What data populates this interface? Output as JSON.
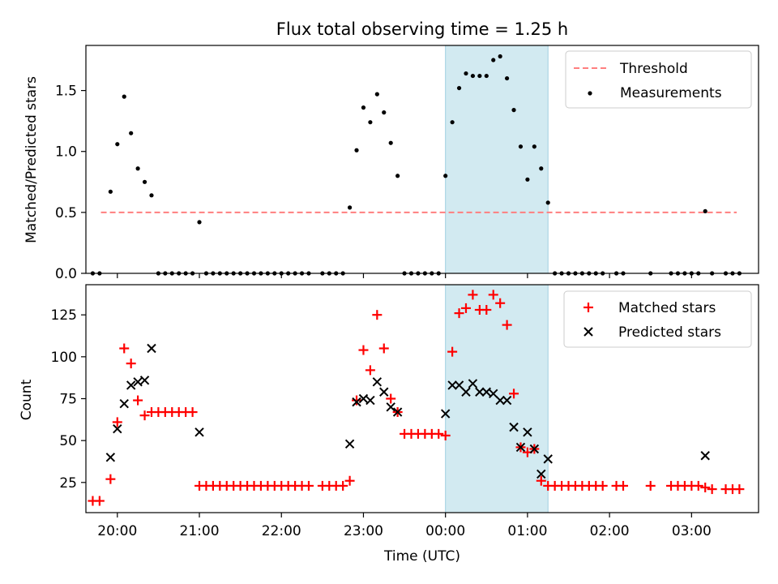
{
  "title": "Flux total observing time = 1.25 h",
  "colors": {
    "threshold": "#ff7f7f",
    "measurement": "#000000",
    "matched": "#ff0000",
    "predicted": "#000000",
    "highlight": "#add8e6"
  },
  "chart_data": [
    {
      "type": "scatter",
      "ylabel": "Matched/Predicted stars",
      "xlim": [
        "19:37",
        "03:49"
      ],
      "ylim": [
        0,
        1.87
      ],
      "yticks": [
        0.0,
        0.5,
        1.0,
        1.5
      ],
      "ytick_labels": [
        "0.0",
        "0.5",
        "1.0",
        "1.5"
      ],
      "highlight_span": [
        "00:00",
        "01:15"
      ],
      "legend_position": "upper right",
      "threshold": {
        "name": "Threshold",
        "value": 0.5,
        "x_range": [
          "19:48",
          "03:33"
        ]
      },
      "series": [
        {
          "name": "Measurements",
          "points": [
            [
              "19:42",
              0
            ],
            [
              "19:47",
              0
            ],
            [
              "19:55",
              0.67
            ],
            [
              "20:00",
              1.06
            ],
            [
              "20:05",
              1.45
            ],
            [
              "20:10",
              1.15
            ],
            [
              "20:15",
              0.86
            ],
            [
              "20:20",
              0.75
            ],
            [
              "20:25",
              0.64
            ],
            [
              "20:30",
              0
            ],
            [
              "20:35",
              0
            ],
            [
              "20:40",
              0
            ],
            [
              "20:45",
              0
            ],
            [
              "20:50",
              0
            ],
            [
              "20:55",
              0
            ],
            [
              "21:00",
              0.42
            ],
            [
              "21:05",
              0
            ],
            [
              "21:10",
              0
            ],
            [
              "21:15",
              0
            ],
            [
              "21:20",
              0
            ],
            [
              "21:25",
              0
            ],
            [
              "21:30",
              0
            ],
            [
              "21:35",
              0
            ],
            [
              "21:40",
              0
            ],
            [
              "21:45",
              0
            ],
            [
              "21:50",
              0
            ],
            [
              "21:55",
              0
            ],
            [
              "22:00",
              0
            ],
            [
              "22:05",
              0
            ],
            [
              "22:10",
              0
            ],
            [
              "22:15",
              0
            ],
            [
              "22:20",
              0
            ],
            [
              "22:30",
              0
            ],
            [
              "22:35",
              0
            ],
            [
              "22:40",
              0
            ],
            [
              "22:45",
              0
            ],
            [
              "22:50",
              0.54
            ],
            [
              "22:55",
              1.01
            ],
            [
              "23:00",
              1.36
            ],
            [
              "23:05",
              1.24
            ],
            [
              "23:10",
              1.47
            ],
            [
              "23:15",
              1.32
            ],
            [
              "23:20",
              1.07
            ],
            [
              "23:25",
              0.8
            ],
            [
              "23:30",
              0
            ],
            [
              "23:35",
              0
            ],
            [
              "23:40",
              0
            ],
            [
              "23:45",
              0
            ],
            [
              "23:50",
              0
            ],
            [
              "23:55",
              0
            ],
            [
              "00:00",
              0.8
            ],
            [
              "00:05",
              1.24
            ],
            [
              "00:10",
              1.52
            ],
            [
              "00:15",
              1.64
            ],
            [
              "00:20",
              1.62
            ],
            [
              "00:25",
              1.62
            ],
            [
              "00:30",
              1.62
            ],
            [
              "00:35",
              1.75
            ],
            [
              "00:40",
              1.78
            ],
            [
              "00:45",
              1.6
            ],
            [
              "00:50",
              1.34
            ],
            [
              "00:55",
              1.04
            ],
            [
              "01:00",
              0.77
            ],
            [
              "01:05",
              1.04
            ],
            [
              "01:10",
              0.86
            ],
            [
              "01:15",
              0.58
            ],
            [
              "01:20",
              0
            ],
            [
              "01:25",
              0
            ],
            [
              "01:30",
              0
            ],
            [
              "01:35",
              0
            ],
            [
              "01:40",
              0
            ],
            [
              "01:45",
              0
            ],
            [
              "01:50",
              0
            ],
            [
              "01:55",
              0
            ],
            [
              "02:05",
              0
            ],
            [
              "02:10",
              0
            ],
            [
              "02:30",
              0
            ],
            [
              "02:45",
              0
            ],
            [
              "02:50",
              0
            ],
            [
              "02:55",
              0
            ],
            [
              "03:00",
              0
            ],
            [
              "03:05",
              0
            ],
            [
              "03:10",
              0.51
            ],
            [
              "03:15",
              0
            ],
            [
              "03:25",
              0
            ],
            [
              "03:30",
              0
            ],
            [
              "03:35",
              0
            ]
          ]
        }
      ]
    },
    {
      "type": "scatter",
      "xlabel": "Time (UTC)",
      "ylabel": "Count",
      "xlim": [
        "19:37",
        "03:49"
      ],
      "ylim": [
        7,
        143
      ],
      "yticks": [
        25,
        50,
        75,
        100,
        125
      ],
      "ytick_labels": [
        "25",
        "50",
        "75",
        "100",
        "125"
      ],
      "xticks": [
        "20:00",
        "21:00",
        "22:00",
        "23:00",
        "00:00",
        "01:00",
        "02:00",
        "03:00"
      ],
      "highlight_span": [
        "00:00",
        "01:15"
      ],
      "legend_position": "upper right",
      "series": [
        {
          "name": "Matched stars",
          "marker": "plus",
          "points": [
            [
              "19:42",
              14
            ],
            [
              "19:47",
              14
            ],
            [
              "19:55",
              27
            ],
            [
              "20:00",
              61
            ],
            [
              "20:05",
              105
            ],
            [
              "20:10",
              96
            ],
            [
              "20:15",
              74
            ],
            [
              "20:20",
              65
            ],
            [
              "20:25",
              67
            ],
            [
              "20:30",
              67
            ],
            [
              "20:35",
              67
            ],
            [
              "20:40",
              67
            ],
            [
              "20:45",
              67
            ],
            [
              "20:50",
              67
            ],
            [
              "20:55",
              67
            ],
            [
              "21:00",
              23
            ],
            [
              "21:05",
              23
            ],
            [
              "21:10",
              23
            ],
            [
              "21:15",
              23
            ],
            [
              "21:20",
              23
            ],
            [
              "21:25",
              23
            ],
            [
              "21:30",
              23
            ],
            [
              "21:35",
              23
            ],
            [
              "21:40",
              23
            ],
            [
              "21:45",
              23
            ],
            [
              "21:50",
              23
            ],
            [
              "21:55",
              23
            ],
            [
              "22:00",
              23
            ],
            [
              "22:05",
              23
            ],
            [
              "22:10",
              23
            ],
            [
              "22:15",
              23
            ],
            [
              "22:20",
              23
            ],
            [
              "22:30",
              23
            ],
            [
              "22:35",
              23
            ],
            [
              "22:40",
              23
            ],
            [
              "22:45",
              23
            ],
            [
              "22:50",
              26
            ],
            [
              "22:55",
              74
            ],
            [
              "23:00",
              104
            ],
            [
              "23:05",
              92
            ],
            [
              "23:10",
              125
            ],
            [
              "23:15",
              105
            ],
            [
              "23:20",
              75
            ],
            [
              "23:25",
              67
            ],
            [
              "23:30",
              54
            ],
            [
              "23:35",
              54
            ],
            [
              "23:40",
              54
            ],
            [
              "23:45",
              54
            ],
            [
              "23:50",
              54
            ],
            [
              "23:55",
              54
            ],
            [
              "00:00",
              53
            ],
            [
              "00:05",
              103
            ],
            [
              "00:10",
              126
            ],
            [
              "00:15",
              129
            ],
            [
              "00:20",
              137
            ],
            [
              "00:25",
              128
            ],
            [
              "00:30",
              128
            ],
            [
              "00:35",
              137
            ],
            [
              "00:40",
              132
            ],
            [
              "00:45",
              119
            ],
            [
              "00:50",
              78
            ],
            [
              "00:55",
              46
            ],
            [
              "01:00",
              43
            ],
            [
              "01:05",
              45
            ],
            [
              "01:10",
              26
            ],
            [
              "01:15",
              23
            ],
            [
              "01:20",
              23
            ],
            [
              "01:25",
              23
            ],
            [
              "01:30",
              23
            ],
            [
              "01:35",
              23
            ],
            [
              "01:40",
              23
            ],
            [
              "01:45",
              23
            ],
            [
              "01:50",
              23
            ],
            [
              "01:55",
              23
            ],
            [
              "02:05",
              23
            ],
            [
              "02:10",
              23
            ],
            [
              "02:30",
              23
            ],
            [
              "02:45",
              23
            ],
            [
              "02:50",
              23
            ],
            [
              "02:55",
              23
            ],
            [
              "03:00",
              23
            ],
            [
              "03:05",
              23
            ],
            [
              "03:10",
              22
            ],
            [
              "03:15",
              21
            ],
            [
              "03:25",
              21
            ],
            [
              "03:30",
              21
            ],
            [
              "03:35",
              21
            ]
          ]
        },
        {
          "name": "Predicted stars",
          "marker": "x",
          "points": [
            [
              "19:55",
              40
            ],
            [
              "20:00",
              57
            ],
            [
              "20:05",
              72
            ],
            [
              "20:10",
              83
            ],
            [
              "20:15",
              85
            ],
            [
              "20:20",
              86
            ],
            [
              "20:25",
              105
            ],
            [
              "21:00",
              55
            ],
            [
              "22:50",
              48
            ],
            [
              "22:55",
              73
            ],
            [
              "23:00",
              75
            ],
            [
              "23:05",
              74
            ],
            [
              "23:10",
              85
            ],
            [
              "23:15",
              79
            ],
            [
              "23:20",
              70
            ],
            [
              "23:25",
              67
            ],
            [
              "00:00",
              66
            ],
            [
              "00:05",
              83
            ],
            [
              "00:10",
              83
            ],
            [
              "00:15",
              79
            ],
            [
              "00:20",
              84
            ],
            [
              "00:25",
              79
            ],
            [
              "00:30",
              79
            ],
            [
              "00:35",
              78
            ],
            [
              "00:40",
              74
            ],
            [
              "00:45",
              74
            ],
            [
              "00:50",
              58
            ],
            [
              "00:55",
              46
            ],
            [
              "01:00",
              55
            ],
            [
              "01:05",
              45
            ],
            [
              "01:10",
              30
            ],
            [
              "01:15",
              39
            ],
            [
              "03:10",
              41
            ]
          ]
        }
      ]
    }
  ]
}
